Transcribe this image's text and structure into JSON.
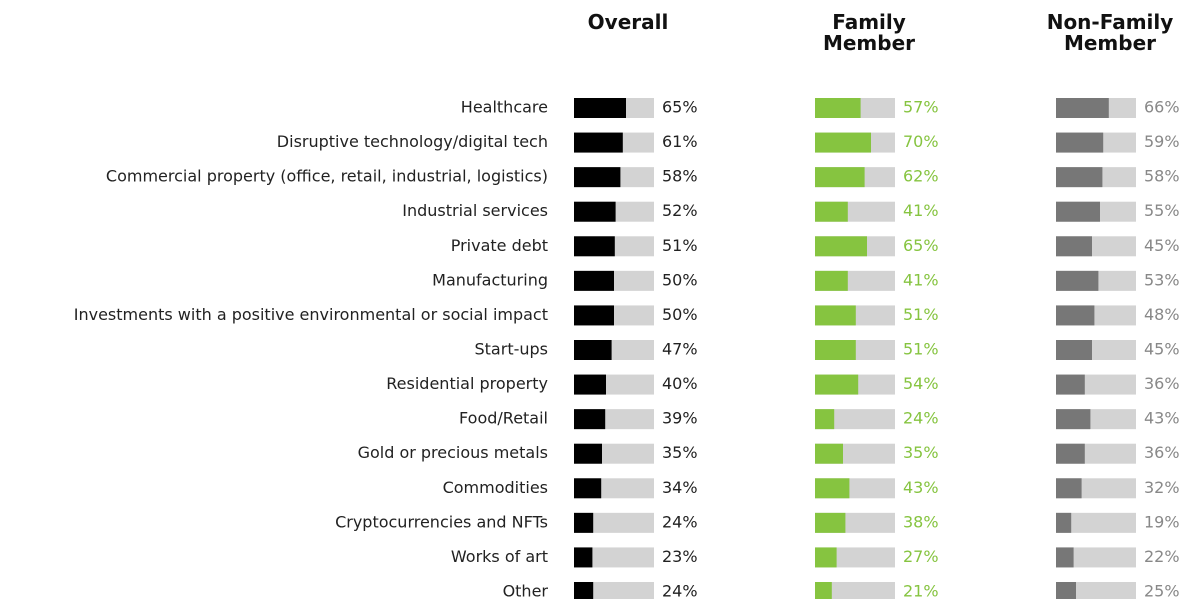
{
  "chart_data": {
    "type": "bar",
    "categories": [
      "Healthcare",
      "Disruptive technology/digital tech",
      "Commercial property (office, retail, industrial, logistics)",
      "Industrial services",
      "Private debt",
      "Manufacturing",
      "Investments with a positive environmental or social impact",
      "Start-ups",
      "Residential property",
      "Food/Retail",
      "Gold or precious metals",
      "Commodities",
      "Cryptocurrencies and NFTs",
      "Works of art",
      "Other"
    ],
    "xlim": [
      0,
      100
    ],
    "track_color": "#d3d3d3",
    "series": [
      {
        "name": "Overall",
        "color": "#000000",
        "label_color": "#222222",
        "values": [
          65,
          61,
          58,
          52,
          51,
          50,
          50,
          47,
          40,
          39,
          35,
          34,
          24,
          23,
          24
        ],
        "value_labels": [
          "65%",
          "61%",
          "58%",
          "52%",
          "51%",
          "50%",
          "50%",
          "47%",
          "40%",
          "39%",
          "35%",
          "34%",
          "24%",
          "23%",
          "24%"
        ]
      },
      {
        "name": "Family Member",
        "color": "#86c440",
        "label_color": "#86c440",
        "values": [
          57,
          70,
          62,
          41,
          65,
          41,
          51,
          51,
          54,
          24,
          35,
          43,
          38,
          27,
          21
        ],
        "value_labels": [
          "57%",
          "70%",
          "62%",
          "41%",
          "65%",
          "41%",
          "51%",
          "51%",
          "54%",
          "24%",
          "35%",
          "43%",
          "38%",
          "27%",
          "21%"
        ]
      },
      {
        "name": "Non-Family Member",
        "color": "#777777",
        "label_color": "#888888",
        "values": [
          66,
          59,
          58,
          55,
          45,
          53,
          48,
          45,
          36,
          43,
          36,
          32,
          19,
          22,
          25
        ],
        "value_labels": [
          "66%",
          "59%",
          "58%",
          "55%",
          "45%",
          "53%",
          "48%",
          "45%",
          "36%",
          "43%",
          "36%",
          "32%",
          "19%",
          "22%",
          "25%"
        ]
      }
    ]
  }
}
